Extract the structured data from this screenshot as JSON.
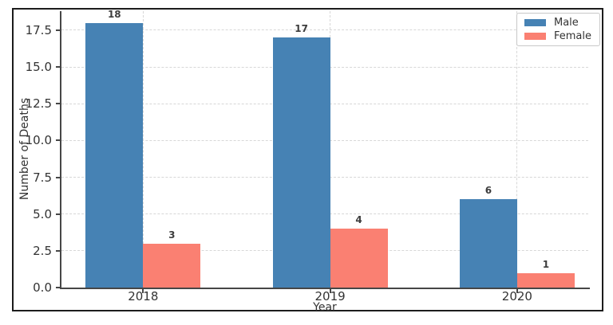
{
  "chart_data": {
    "type": "bar",
    "title": "",
    "xlabel": "Year",
    "ylabel": "Number of Deaths",
    "categories": [
      "2018",
      "2019",
      "2020"
    ],
    "series": [
      {
        "name": "Male",
        "color": "#4682B4",
        "values": [
          18,
          17,
          6
        ]
      },
      {
        "name": "Female",
        "color": "#FA8072",
        "values": [
          3,
          4,
          1
        ]
      }
    ],
    "ylim": [
      0,
      18.8
    ],
    "ytick_labels": [
      "0.0",
      "2.5",
      "5.0",
      "7.5",
      "10.0",
      "12.5",
      "15.0",
      "17.5"
    ],
    "ytick_values": [
      0,
      2.5,
      5,
      7.5,
      10,
      12.5,
      15,
      17.5
    ],
    "grid": {
      "style": "dashed",
      "color": "#d7d7d7",
      "axes": "both"
    },
    "legend": {
      "position": "upper right",
      "entries": [
        "Male",
        "Female"
      ]
    },
    "bar_value_labels_shown": true
  },
  "frame": {
    "border_color": "#1c1c1c"
  },
  "axis": {
    "spine_color": "#464646",
    "tick_label_color": "#333333"
  }
}
